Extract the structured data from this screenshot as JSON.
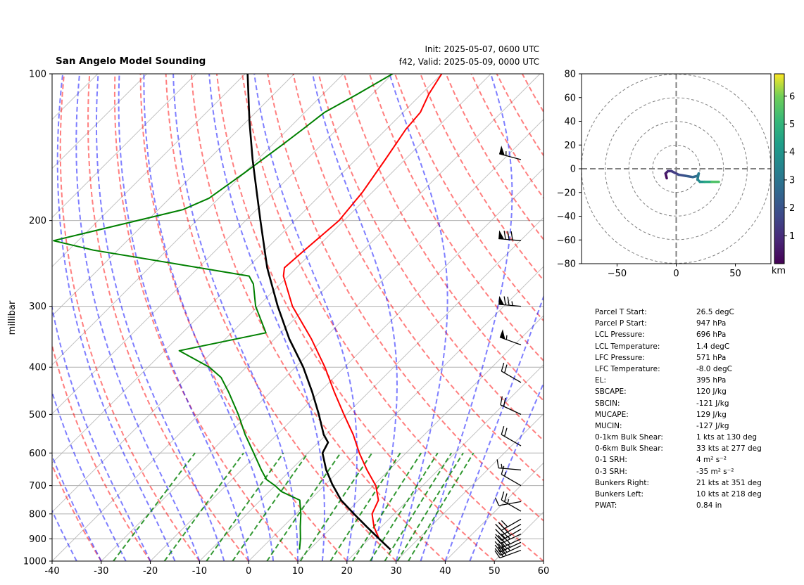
{
  "header": {
    "title": "San Angelo Model Sounding",
    "init": "Init: 2025-05-07, 0600 UTC",
    "valid": "f42, Valid: 2025-05-09, 0000 UTC"
  },
  "chart_data": [
    {
      "type": "skewt",
      "ylabel": "millibar",
      "xlim": [
        -40,
        60
      ],
      "ylim": [
        1000,
        100
      ],
      "xticks": [
        "-40",
        "-30",
        "-20",
        "-10",
        "0",
        "10",
        "20",
        "30",
        "40",
        "50",
        "60"
      ],
      "yticks": [
        "100",
        "200",
        "300",
        "400",
        "500",
        "600",
        "700",
        "800",
        "900",
        "1000"
      ],
      "grid": true,
      "series": [
        {
          "role": "temperature",
          "color": "#ff0000",
          "p": [
            947,
            900,
            850,
            800,
            750,
            700,
            650,
            600,
            550,
            500,
            450,
            400,
            350,
            300,
            260,
            250,
            230,
            200,
            175,
            150,
            130,
            120,
            110,
            100
          ],
          "t": [
            26.5,
            22.0,
            18.5,
            15.5,
            14.0,
            10.5,
            5.5,
            0.5,
            -4.5,
            -10.5,
            -17.0,
            -24.0,
            -32.5,
            -43.0,
            -51.0,
            -52.5,
            -52.0,
            -51.0,
            -52.0,
            -54.0,
            -56.0,
            -56.5,
            -58.5,
            -60.0
          ]
        },
        {
          "role": "dewpoint",
          "color": "#008000",
          "p": [
            947,
            900,
            850,
            800,
            750,
            720,
            700,
            680,
            650,
            600,
            550,
            500,
            450,
            420,
            400,
            370,
            340,
            300,
            270,
            260,
            230,
            220,
            190,
            180,
            160,
            140,
            130,
            120,
            110,
            100
          ],
          "t": [
            8.0,
            6.0,
            3.5,
            1.0,
            -2.0,
            -7.5,
            -10.0,
            -13.0,
            -16.0,
            -21.0,
            -26.5,
            -32.0,
            -38.5,
            -43.0,
            -47.5,
            -57.0,
            -43.0,
            -50.5,
            -55.5,
            -58.0,
            -95.0,
            -105.0,
            -85.0,
            -82.0,
            -80.0,
            -78.0,
            -77.0,
            -76.0,
            -73.0,
            -70.0
          ]
        },
        {
          "role": "parcel",
          "color": "#000000",
          "p": [
            947,
            900,
            850,
            800,
            750,
            700,
            696,
            650,
            600,
            571,
            550,
            500,
            450,
            400,
            395,
            350,
            300,
            250,
            200,
            175,
            150,
            125,
            100
          ],
          "t": [
            26.5,
            22.0,
            17.0,
            11.8,
            6.4,
            1.8,
            1.4,
            -2.8,
            -7.0,
            -8.0,
            -10.5,
            -15.6,
            -21.5,
            -28.4,
            -29.2,
            -37.0,
            -46.0,
            -56.0,
            -67.0,
            -73.5,
            -81.0,
            -89.5,
            -99.5
          ]
        }
      ],
      "wind_barbs": [
        {
          "p": 950,
          "spd": 30,
          "dir": 250
        },
        {
          "p": 930,
          "spd": 35,
          "dir": 245
        },
        {
          "p": 915,
          "spd": 35,
          "dir": 245
        },
        {
          "p": 900,
          "spd": 35,
          "dir": 245
        },
        {
          "p": 880,
          "spd": 35,
          "dir": 245
        },
        {
          "p": 860,
          "spd": 35,
          "dir": 240
        },
        {
          "p": 840,
          "spd": 30,
          "dir": 240
        },
        {
          "p": 820,
          "spd": 30,
          "dir": 240
        },
        {
          "p": 790,
          "spd": 25,
          "dir": 300
        },
        {
          "p": 755,
          "spd": 10,
          "dir": 260
        },
        {
          "p": 700,
          "spd": 15,
          "dir": 300
        },
        {
          "p": 650,
          "spd": 15,
          "dir": 275
        },
        {
          "p": 580,
          "spd": 20,
          "dir": 300
        },
        {
          "p": 500,
          "spd": 20,
          "dir": 295
        },
        {
          "p": 430,
          "spd": 20,
          "dir": 300
        },
        {
          "p": 360,
          "spd": 55,
          "dir": 290
        },
        {
          "p": 300,
          "spd": 75,
          "dir": 275
        },
        {
          "p": 220,
          "spd": 80,
          "dir": 275
        },
        {
          "p": 150,
          "spd": 55,
          "dir": 285
        }
      ]
    },
    {
      "type": "scatter",
      "subtype": "hodograph",
      "xlim": [
        -80,
        80
      ],
      "ylim": [
        -80,
        80
      ],
      "xticks": [
        "−50",
        "0",
        "50"
      ],
      "yticks": [
        "80",
        "60",
        "40",
        "20",
        "0",
        "−20",
        "−40",
        "−60",
        "−80"
      ],
      "colorbar_ticks": [
        "1",
        "2",
        "3",
        "4",
        "5",
        "6"
      ],
      "colorbar_label": "km",
      "colorbar_range": [
        0,
        6.8
      ],
      "rings": [
        20,
        40,
        60,
        80
      ],
      "trace": [
        {
          "u": -8,
          "v": -8,
          "z": 0.1
        },
        {
          "u": -9,
          "v": -4,
          "z": 0.4
        },
        {
          "u": -7,
          "v": -2,
          "z": 0.8
        },
        {
          "u": -4,
          "v": -2,
          "z": 1.2
        },
        {
          "u": 2,
          "v": -5,
          "z": 1.6
        },
        {
          "u": 8,
          "v": -6,
          "z": 2.0
        },
        {
          "u": 14,
          "v": -7,
          "z": 2.4
        },
        {
          "u": 18,
          "v": -6,
          "z": 2.8
        },
        {
          "u": 19,
          "v": -4,
          "z": 3.0
        },
        {
          "u": 18,
          "v": -9,
          "z": 3.3
        },
        {
          "u": 20,
          "v": -11,
          "z": 3.6
        },
        {
          "u": 24,
          "v": -11,
          "z": 4.2
        },
        {
          "u": 30,
          "v": -11,
          "z": 5.0
        },
        {
          "u": 36,
          "v": -11,
          "z": 6.0
        }
      ]
    }
  ],
  "parameters": [
    {
      "label": "Parcel T Start:",
      "value": "26.5 degC"
    },
    {
      "label": "Parcel P Start:",
      "value": "947 hPa"
    },
    {
      "label": "LCL Pressure:",
      "value": "696 hPa"
    },
    {
      "label": "LCL Temperature:",
      "value": "1.4 degC"
    },
    {
      "label": "LFC Pressure:",
      "value": "571 hPa"
    },
    {
      "label": "LFC Temperature:",
      "value": "-8.0 degC"
    },
    {
      "label": "EL:",
      "value": "395 hPa"
    },
    {
      "label": "SBCAPE:",
      "value": "120 J/kg"
    },
    {
      "label": "SBCIN:",
      "value": "-121 J/kg"
    },
    {
      "label": "MUCAPE:",
      "value": "129 J/kg"
    },
    {
      "label": "MUCIN:",
      "value": "-127 J/kg"
    },
    {
      "label": "0-1km Bulk Shear:",
      "value": "1 kts at 130 deg"
    },
    {
      "label": "0-6km Bulk Shear:",
      "value": "33 kts at 277 deg"
    },
    {
      "label": "0-1 SRH:",
      "value": "4 m² s⁻²"
    },
    {
      "label": "0-3 SRH:",
      "value": "-35 m² s⁻²"
    },
    {
      "label": "Bunkers Right:",
      "value": "21 kts at 351 deg"
    },
    {
      "label": "Bunkers Left:",
      "value": "10 kts at 218 deg"
    },
    {
      "label": "PWAT:",
      "value": "0.84 in"
    }
  ]
}
